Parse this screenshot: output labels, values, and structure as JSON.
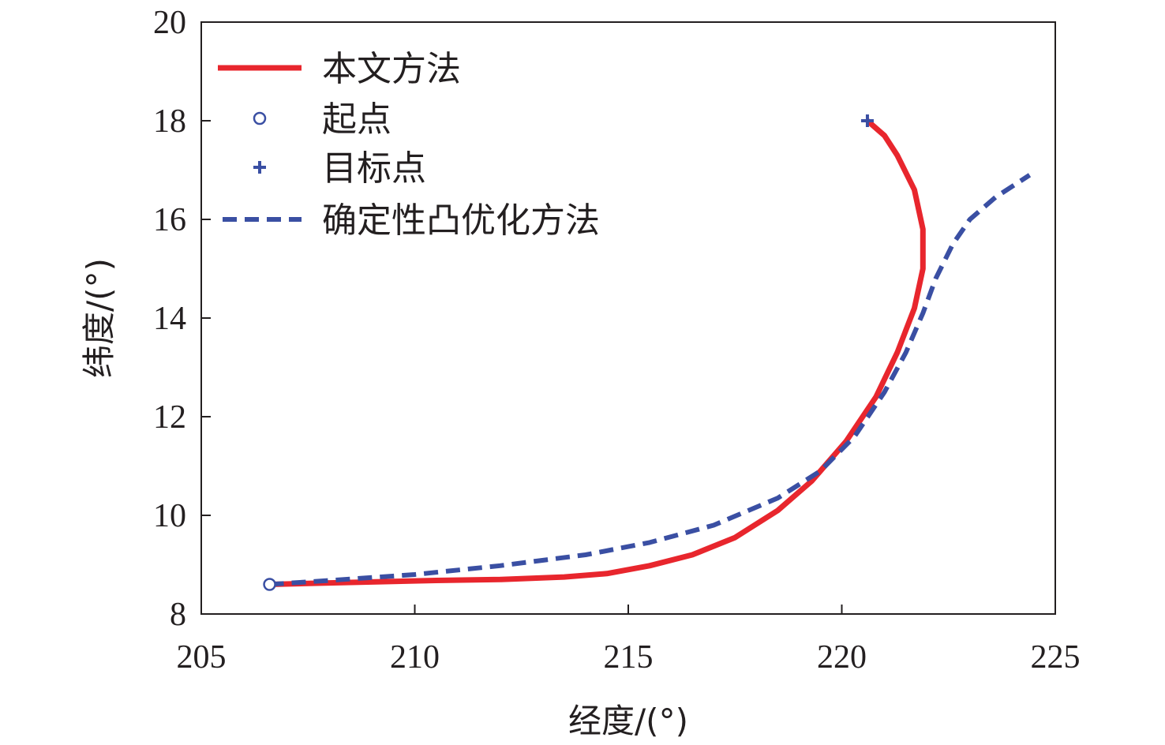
{
  "chart_data": {
    "type": "line",
    "xlabel": "经度/(°)",
    "ylabel": "纬度/(°)",
    "xlim": [
      205,
      225
    ],
    "ylim": [
      8,
      20
    ],
    "x_ticks": [
      "205",
      "210",
      "215",
      "220",
      "225"
    ],
    "y_ticks": [
      "8",
      "10",
      "12",
      "14",
      "16",
      "18",
      "20"
    ],
    "grid": false,
    "legend_position": "top-left",
    "legend": [
      {
        "label": "本文方法",
        "kind": "solid-line",
        "color": "#e8262d"
      },
      {
        "label": "起点",
        "kind": "circle-marker",
        "color": "#3a4fa3"
      },
      {
        "label": "目标点",
        "kind": "plus-marker",
        "color": "#3a4fa3"
      },
      {
        "label": "确定性凸优化方法",
        "kind": "dashed-line",
        "color": "#3a4fa3"
      }
    ],
    "series": [
      {
        "name": "本文方法",
        "color": "#e8262d",
        "style": "solid",
        "points": [
          [
            206.6,
            8.6
          ],
          [
            207.5,
            8.62
          ],
          [
            209,
            8.65
          ],
          [
            210.5,
            8.68
          ],
          [
            212,
            8.7
          ],
          [
            213.5,
            8.75
          ],
          [
            214.5,
            8.82
          ],
          [
            215.5,
            8.98
          ],
          [
            216.5,
            9.2
          ],
          [
            217.5,
            9.55
          ],
          [
            218.5,
            10.1
          ],
          [
            219.3,
            10.7
          ],
          [
            220.1,
            11.5
          ],
          [
            220.8,
            12.4
          ],
          [
            221.3,
            13.3
          ],
          [
            221.7,
            14.2
          ],
          [
            221.9,
            15.0
          ],
          [
            221.9,
            15.8
          ],
          [
            221.7,
            16.6
          ],
          [
            221.3,
            17.3
          ],
          [
            221.0,
            17.7
          ],
          [
            220.6,
            18.0
          ]
        ]
      },
      {
        "name": "确定性凸优化方法",
        "color": "#3a4fa3",
        "style": "dashed",
        "points": [
          [
            206.6,
            8.6
          ],
          [
            208,
            8.68
          ],
          [
            210,
            8.8
          ],
          [
            212,
            8.98
          ],
          [
            214,
            9.2
          ],
          [
            215.5,
            9.45
          ],
          [
            217,
            9.8
          ],
          [
            218.5,
            10.35
          ],
          [
            219.5,
            10.9
          ],
          [
            220.3,
            11.6
          ],
          [
            221,
            12.5
          ],
          [
            221.5,
            13.3
          ],
          [
            221.9,
            14.1
          ],
          [
            222.2,
            14.8
          ],
          [
            222.6,
            15.5
          ],
          [
            223.0,
            16.0
          ],
          [
            223.6,
            16.45
          ],
          [
            224.4,
            16.9
          ]
        ]
      }
    ],
    "markers": [
      {
        "name": "起点",
        "shape": "circle",
        "x": 206.6,
        "y": 8.6,
        "color": "#3a4fa3"
      },
      {
        "name": "目标点",
        "shape": "plus",
        "x": 220.6,
        "y": 18.0,
        "color": "#3a4fa3"
      }
    ]
  }
}
